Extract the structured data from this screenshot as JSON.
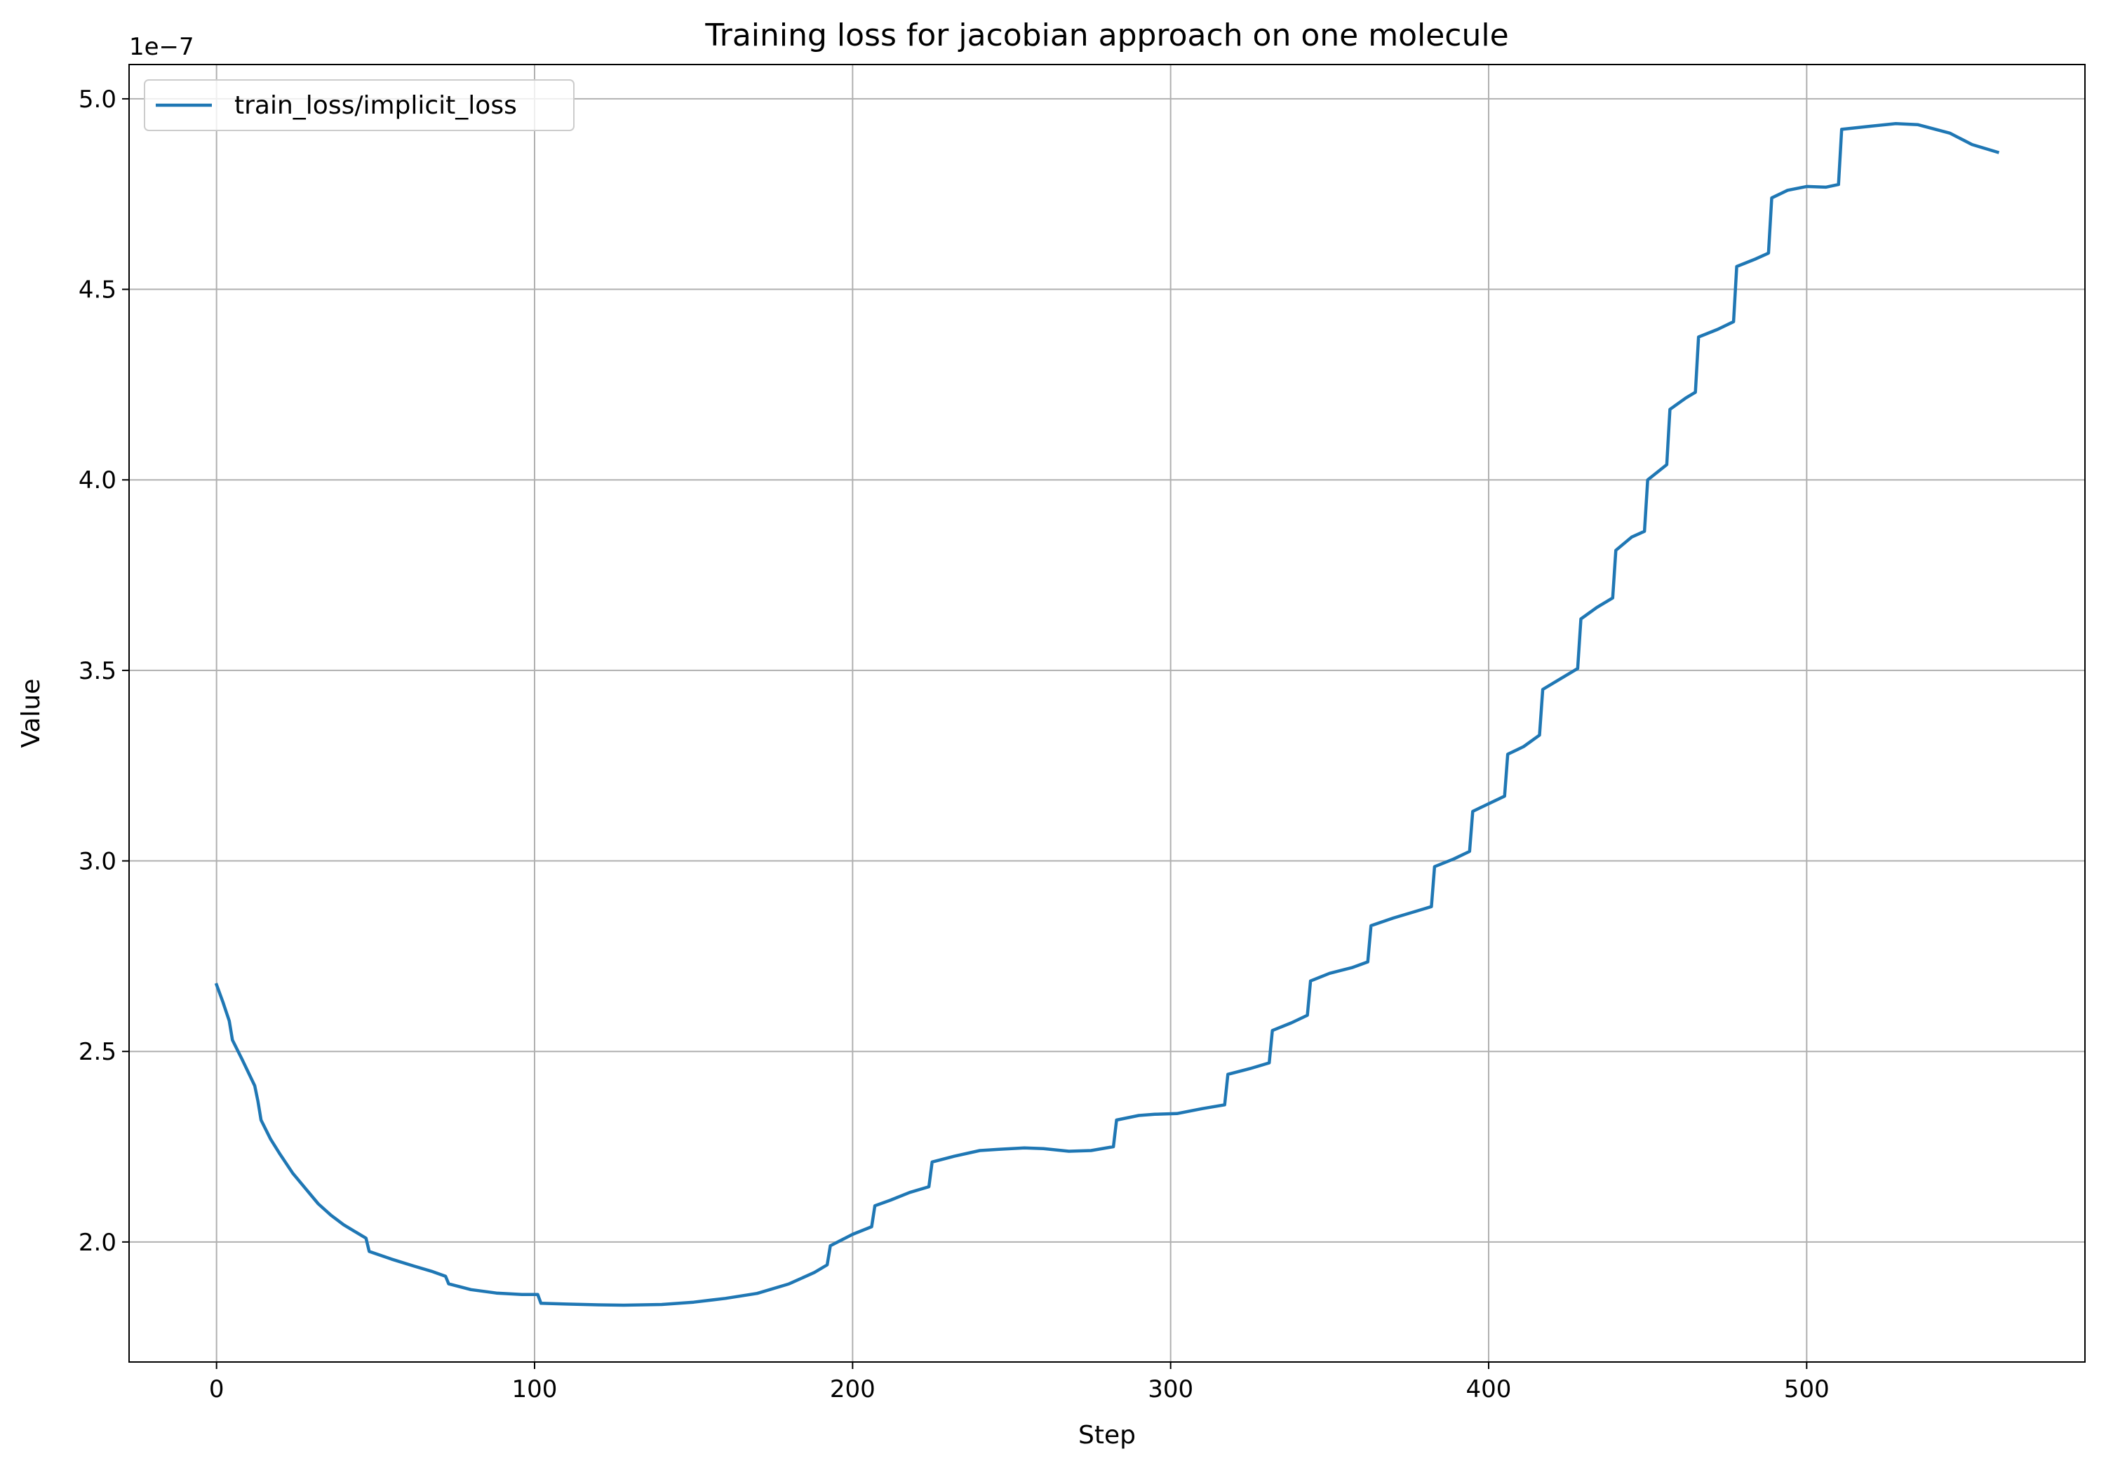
{
  "chart_data": {
    "type": "line",
    "title": "Training loss for jacobian approach on one molecule",
    "xlabel": "Step",
    "ylabel": "Value",
    "y_offset_text": "1e−7",
    "xlim": [
      -27.5,
      587.5
    ],
    "ylim": [
      1.685,
      5.09
    ],
    "y_scale_exponent": -7,
    "grid": true,
    "legend_position": "top-left",
    "x_ticks": [
      0,
      100,
      200,
      300,
      400,
      500
    ],
    "x_tick_labels": [
      "0",
      "100",
      "200",
      "300",
      "400",
      "500"
    ],
    "y_ticks": [
      2.0,
      2.5,
      3.0,
      3.5,
      4.0,
      4.5,
      5.0
    ],
    "y_tick_labels": [
      "2.0",
      "2.5",
      "3.0",
      "3.5",
      "4.0",
      "4.5",
      "5.0"
    ],
    "series": [
      {
        "name": "train_loss/implicit_loss",
        "color": "#1f77b4",
        "x": [
          0,
          2,
          4,
          5,
          8,
          12,
          13,
          14,
          17,
          20,
          24,
          28,
          32,
          36,
          40,
          44,
          47,
          48,
          55,
          62,
          68,
          72,
          73,
          80,
          88,
          96,
          101,
          102,
          110,
          120,
          128,
          140,
          150,
          160,
          170,
          180,
          188,
          192,
          193,
          200,
          206,
          207,
          212,
          218,
          224,
          225,
          232,
          240,
          246,
          254,
          260,
          268,
          275,
          282,
          283,
          290,
          295,
          302,
          310,
          317,
          318,
          325,
          331,
          332,
          338,
          343,
          344,
          350,
          357,
          362,
          363,
          370,
          376,
          382,
          383,
          389,
          394,
          395,
          400,
          405,
          406,
          411,
          416,
          417,
          423,
          428,
          429,
          434,
          439,
          440,
          445,
          449,
          450,
          456,
          457,
          462,
          465,
          466,
          472,
          477,
          478,
          484,
          488,
          489,
          494,
          500,
          506,
          510,
          511,
          520,
          528,
          535,
          545,
          552,
          560
        ],
        "values": [
          2.675,
          2.63,
          2.58,
          2.53,
          2.48,
          2.41,
          2.37,
          2.32,
          2.27,
          2.23,
          2.18,
          2.14,
          2.1,
          2.07,
          2.045,
          2.025,
          2.01,
          1.975,
          1.955,
          1.937,
          1.922,
          1.91,
          1.89,
          1.875,
          1.866,
          1.862,
          1.862,
          1.839,
          1.837,
          1.835,
          1.834,
          1.836,
          1.842,
          1.852,
          1.865,
          1.89,
          1.92,
          1.94,
          1.99,
          2.02,
          2.04,
          2.095,
          2.11,
          2.13,
          2.145,
          2.21,
          2.225,
          2.24,
          2.243,
          2.247,
          2.245,
          2.238,
          2.24,
          2.25,
          2.32,
          2.332,
          2.335,
          2.337,
          2.35,
          2.36,
          2.44,
          2.455,
          2.47,
          2.555,
          2.575,
          2.595,
          2.685,
          2.705,
          2.72,
          2.735,
          2.83,
          2.85,
          2.865,
          2.88,
          2.985,
          3.005,
          3.025,
          3.13,
          3.15,
          3.17,
          3.28,
          3.3,
          3.33,
          3.45,
          3.48,
          3.505,
          3.635,
          3.665,
          3.69,
          3.815,
          3.85,
          3.865,
          4.0,
          4.04,
          4.185,
          4.215,
          4.23,
          4.375,
          4.395,
          4.415,
          4.56,
          4.58,
          4.595,
          4.74,
          4.76,
          4.77,
          4.768,
          4.775,
          4.92,
          4.928,
          4.935,
          4.932,
          4.91,
          4.88,
          4.86
        ]
      }
    ]
  }
}
